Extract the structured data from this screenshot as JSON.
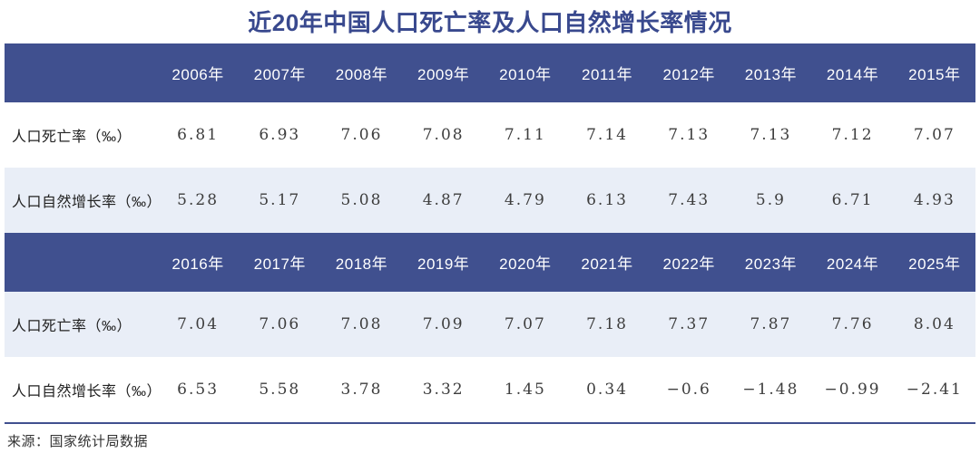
{
  "page": {
    "title": "近20年中国人口死亡率及人口自然增长率情况",
    "source_note": "来源：国家统计局数据"
  },
  "colors": {
    "title_text": "#39498E",
    "header_bg": "#40508F",
    "header_text": "#FFFFFF",
    "shaded_row_bg": "#E9EEF7",
    "plain_row_bg": "#FFFFFF",
    "value_text": "#3D3D3D",
    "label_text": "#222222",
    "bottom_rule": "#40508F"
  },
  "chart_data": {
    "type": "table",
    "title": "近20年中国人口死亡率及人口自然增长率情况",
    "source": "来源：国家统计局数据",
    "unit": "‰",
    "tables": [
      {
        "year_headers": [
          "2006年",
          "2007年",
          "2008年",
          "2009年",
          "2010年",
          "2011年",
          "2012年",
          "2013年",
          "2014年",
          "2015年"
        ],
        "rows": [
          {
            "label": "人口死亡率（‰）",
            "shaded": false,
            "values": [
              6.81,
              6.93,
              7.06,
              7.08,
              7.11,
              7.14,
              7.13,
              7.13,
              7.12,
              7.07
            ]
          },
          {
            "label": "人口自然增长率（‰）",
            "shaded": true,
            "values": [
              5.28,
              5.17,
              5.08,
              4.87,
              4.79,
              6.13,
              7.43,
              5.9,
              6.71,
              4.93
            ]
          }
        ]
      },
      {
        "year_headers": [
          "2016年",
          "2017年",
          "2018年",
          "2019年",
          "2020年",
          "2021年",
          "2022年",
          "2023年",
          "2024年",
          "2025年"
        ],
        "rows": [
          {
            "label": "人口死亡率（‰）",
            "shaded": true,
            "values": [
              7.04,
              7.06,
              7.08,
              7.09,
              7.07,
              7.18,
              7.37,
              7.87,
              7.76,
              8.04
            ]
          },
          {
            "label": "人口自然增长率（‰）",
            "shaded": false,
            "values": [
              6.53,
              5.58,
              3.78,
              3.32,
              1.45,
              0.34,
              -0.6,
              -1.48,
              -0.99,
              -2.41
            ]
          }
        ]
      }
    ]
  }
}
